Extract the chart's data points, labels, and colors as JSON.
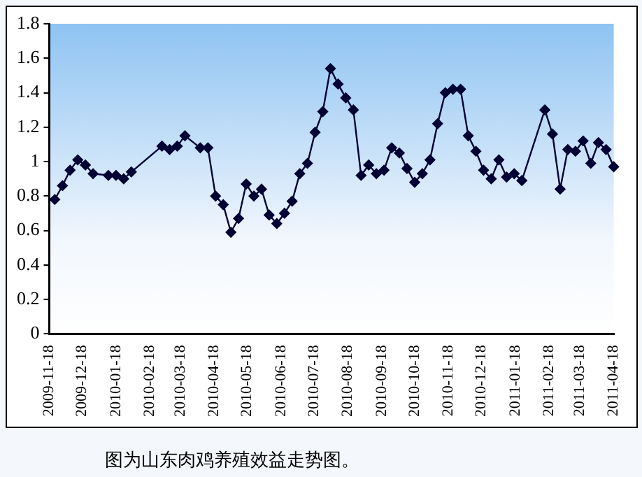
{
  "chart_data": {
    "type": "line",
    "marker": "diamond",
    "line_style": "solid",
    "grid": false,
    "legend": false,
    "annotations": [
      "图为山东肉鸡养殖效益走势图。"
    ],
    "x": [
      "2009-11-23",
      "2009-11-30",
      "2009-12-07",
      "2009-12-14",
      "2009-12-21",
      "2009-12-28",
      "2010-01-11",
      "2010-01-18",
      "2010-01-25",
      "2010-02-01",
      "2010-03-01",
      "2010-03-08",
      "2010-03-15",
      "2010-03-22",
      "2010-04-05",
      "2010-04-12",
      "2010-04-19",
      "2010-04-26",
      "2010-05-03",
      "2010-05-10",
      "2010-05-17",
      "2010-05-24",
      "2010-05-31",
      "2010-06-07",
      "2010-06-14",
      "2010-06-21",
      "2010-06-28",
      "2010-07-05",
      "2010-07-12",
      "2010-07-19",
      "2010-07-26",
      "2010-08-02",
      "2010-08-09",
      "2010-08-16",
      "2010-08-23",
      "2010-08-30",
      "2010-09-06",
      "2010-09-13",
      "2010-09-20",
      "2010-09-27",
      "2010-10-04",
      "2010-10-11",
      "2010-10-18",
      "2010-10-25",
      "2010-11-01",
      "2010-11-08",
      "2010-11-15",
      "2010-11-22",
      "2010-11-29",
      "2010-12-06",
      "2010-12-13",
      "2010-12-20",
      "2010-12-27",
      "2011-01-03",
      "2011-01-10",
      "2011-01-17",
      "2011-01-24",
      "2011-02-14",
      "2011-02-21",
      "2011-02-28",
      "2011-03-07",
      "2011-03-14",
      "2011-03-21",
      "2011-03-28",
      "2011-04-04",
      "2011-04-11",
      "2011-04-18"
    ],
    "series": [
      {
        "color": "#000033",
        "values": [
          0.78,
          0.86,
          0.95,
          1.01,
          0.98,
          0.93,
          0.92,
          0.92,
          0.9,
          0.94,
          1.09,
          1.07,
          1.09,
          1.15,
          1.08,
          1.08,
          0.8,
          0.75,
          0.59,
          0.67,
          0.87,
          0.8,
          0.84,
          0.69,
          0.64,
          0.7,
          0.77,
          0.93,
          0.99,
          1.17,
          1.29,
          1.54,
          1.45,
          1.37,
          1.3,
          0.92,
          0.98,
          0.93,
          0.95,
          1.08,
          1.05,
          0.96,
          0.88,
          0.93,
          1.01,
          1.22,
          1.4,
          1.42,
          1.42,
          1.15,
          1.06,
          0.95,
          0.9,
          1.01,
          0.91,
          0.93,
          0.89,
          1.3,
          1.16,
          0.84,
          1.07,
          1.06,
          1.12,
          0.99,
          1.11,
          1.07,
          0.97
        ]
      }
    ],
    "xlim": [
      "2009-11-18",
      "2011-04-18"
    ],
    "xticks": [
      "2009-11-18",
      "2009-12-18",
      "2010-01-18",
      "2010-02-18",
      "2010-03-18",
      "2010-04-18",
      "2010-05-18",
      "2010-06-18",
      "2010-07-18",
      "2010-08-18",
      "2010-09-18",
      "2010-10-18",
      "2010-11-18",
      "2010-12-18",
      "2011-01-18",
      "2011-02-18",
      "2011-03-18",
      "2011-04-18"
    ],
    "ylim": [
      0,
      1.8
    ],
    "yticks": [
      0,
      0.2,
      0.4,
      0.6,
      0.8,
      1,
      1.2,
      1.4,
      1.6,
      1.8
    ]
  }
}
